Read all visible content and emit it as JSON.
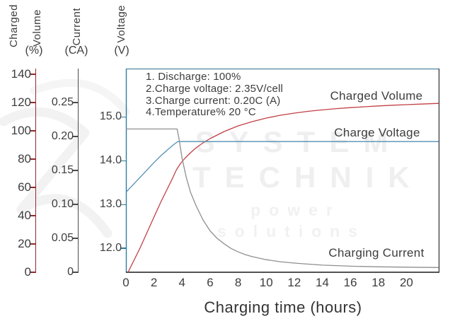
{
  "watermark": {
    "line1": "SYSTEM",
    "line2": "TECHNIK",
    "line3": "power solutions"
  },
  "chart_data": {
    "type": "line",
    "grid": false,
    "legend_position": "labels-inline-right",
    "x_axis": {
      "label": "Charging time (hours)",
      "tick_labels": [
        "0",
        "2",
        "4",
        "6",
        "8",
        "10",
        "12",
        "14",
        "16",
        "18",
        "20"
      ],
      "tick_values": [
        0,
        2,
        4,
        6,
        8,
        10,
        12,
        14,
        16,
        18,
        20
      ],
      "range": [
        0,
        22.3
      ]
    },
    "y_axes": [
      {
        "id": "volume",
        "title": [
          "Charged",
          "Volume"
        ],
        "unit": "(%)",
        "tick_labels": [
          "140",
          "120",
          "100",
          "80",
          "60",
          "40",
          "20",
          "0"
        ],
        "tick_values": [
          140,
          120,
          100,
          80,
          60,
          40,
          20,
          0
        ],
        "range": [
          0,
          144
        ],
        "color": "#8e2b2d"
      },
      {
        "id": "current",
        "title": [
          "Current"
        ],
        "unit": "(CA)",
        "tick_labels": [
          "0.25",
          "0.20",
          "0.15",
          "0.10",
          "0.05",
          "0"
        ],
        "tick_values": [
          0.25,
          0.2,
          0.15,
          0.1,
          0.05,
          0
        ],
        "range": [
          0,
          0.3
        ],
        "color": "#4c4c4c"
      },
      {
        "id": "voltage",
        "title": [
          "Voltage"
        ],
        "unit": "(V)",
        "tick_labels": [
          "15.0",
          "14.0",
          "13.0",
          "12.0"
        ],
        "tick_values": [
          15.0,
          14.0,
          13.0,
          12.0
        ],
        "range": [
          11.45,
          16.11
        ],
        "color": "#2f7d9d"
      }
    ],
    "series": [
      {
        "name": "Charged Volume",
        "axis": "volume",
        "color": "#c24045",
        "points": [
          [
            0.15,
            0
          ],
          [
            0.5,
            7
          ],
          [
            1,
            17
          ],
          [
            1.5,
            28
          ],
          [
            2,
            39
          ],
          [
            2.5,
            50
          ],
          [
            3,
            60
          ],
          [
            3.3,
            66
          ],
          [
            3.6,
            72.5
          ],
          [
            3.9,
            77
          ],
          [
            4.2,
            80.5
          ],
          [
            4.6,
            84.5
          ],
          [
            5,
            88
          ],
          [
            5.5,
            91.5
          ],
          [
            6,
            94.5
          ],
          [
            6.5,
            97
          ],
          [
            7,
            99.5
          ],
          [
            7.5,
            101.5
          ],
          [
            8,
            103.5
          ],
          [
            9,
            106.5
          ],
          [
            10,
            109
          ],
          [
            11,
            111
          ],
          [
            12,
            112.5
          ],
          [
            13,
            113.8
          ],
          [
            14,
            114.8
          ],
          [
            15,
            115.7
          ],
          [
            16,
            116.4
          ],
          [
            17,
            117
          ],
          [
            18,
            117.6
          ],
          [
            19,
            118.1
          ],
          [
            20,
            118.5
          ],
          [
            21,
            118.9
          ],
          [
            22.3,
            119.4
          ]
        ]
      },
      {
        "name": "Charge Voltage",
        "axis": "voltage",
        "color": "#5390b4",
        "points": [
          [
            0,
            13.28
          ],
          [
            0.5,
            13.45
          ],
          [
            1,
            13.62
          ],
          [
            1.5,
            13.79
          ],
          [
            2,
            13.96
          ],
          [
            2.5,
            14.12
          ],
          [
            3,
            14.26
          ],
          [
            3.4,
            14.37
          ],
          [
            3.7,
            14.44
          ],
          [
            22.3,
            14.44
          ]
        ]
      },
      {
        "name": "Charging Current",
        "axis": "current",
        "color": "#8f8f8f",
        "points": [
          [
            0,
            0.211
          ],
          [
            3.65,
            0.211
          ],
          [
            3.8,
            0.195
          ],
          [
            4.0,
            0.168
          ],
          [
            4.3,
            0.14
          ],
          [
            4.6,
            0.118
          ],
          [
            5.0,
            0.098
          ],
          [
            5.5,
            0.077
          ],
          [
            6.0,
            0.061
          ],
          [
            6.5,
            0.05
          ],
          [
            7.0,
            0.042
          ],
          [
            7.5,
            0.035
          ],
          [
            8,
            0.03
          ],
          [
            8.5,
            0.026
          ],
          [
            9,
            0.023
          ],
          [
            10,
            0.0185
          ],
          [
            11,
            0.0155
          ],
          [
            12,
            0.0135
          ],
          [
            13,
            0.012
          ],
          [
            14,
            0.0105
          ],
          [
            16,
            0.009
          ],
          [
            18,
            0.008
          ],
          [
            20,
            0.0075
          ],
          [
            22.3,
            0.007
          ]
        ]
      }
    ],
    "annotations": [
      "1. Discharge: 100%",
      "2.Charge voltage: 2.35V/cell",
      "3.Charge current: 0.20C (A)",
      "4.Temperature% 20 °C"
    ]
  }
}
